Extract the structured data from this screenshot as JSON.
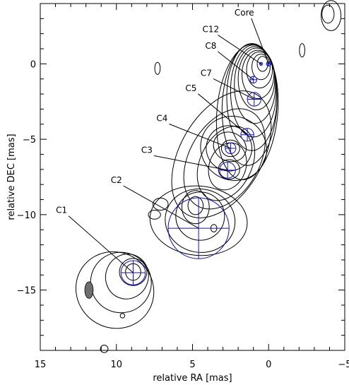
{
  "chart_data": {
    "type": "contour",
    "xlabel": "relative RA [mas]",
    "ylabel": "relative DEC [mas]",
    "xlim": [
      15,
      -5
    ],
    "ylim": [
      -19,
      4
    ],
    "x_ticks": [
      15,
      10,
      5,
      0,
      -5
    ],
    "x_tick_labels": [
      "15",
      "10",
      "5",
      "0",
      "−5"
    ],
    "y_ticks": [
      0,
      -5,
      -10,
      -15
    ],
    "y_tick_labels": [
      "0",
      "−5",
      "−10",
      "−15"
    ],
    "grid": false,
    "colors": {
      "contour": "#000000",
      "component": "#1010c8",
      "beam": "#6e6e6e"
    },
    "beam": {
      "x": 11.8,
      "y": -15.0,
      "major": 1.1,
      "minor": 0.55,
      "pa_deg": 0
    },
    "components": [
      {
        "name": "Core",
        "x": 0.0,
        "y": 0.0,
        "size": 0.3,
        "label_x": 1.6,
        "label_y": 3.2
      },
      {
        "name": "C12",
        "x": 0.5,
        "y": 0.0,
        "size": 0.2,
        "label_x": 3.8,
        "label_y": 2.1
      },
      {
        "name": "C8",
        "x": 1.0,
        "y": -1.05,
        "size": 0.45,
        "label_x": 3.8,
        "label_y": 1.0
      },
      {
        "name": "C7",
        "x": 0.95,
        "y": -2.35,
        "size": 0.9,
        "label_x": 4.1,
        "label_y": -0.8
      },
      {
        "name": "C5",
        "x": 1.4,
        "y": -4.7,
        "size": 0.85,
        "label_x": 5.1,
        "label_y": -1.8
      },
      {
        "name": "C4",
        "x": 2.5,
        "y": -5.6,
        "size": 0.7,
        "label_x": 7.0,
        "label_y": -3.8
      },
      {
        "name": "C3",
        "x": 2.7,
        "y": -7.05,
        "size": 1.05,
        "label_x": 8.0,
        "label_y": -5.9
      },
      {
        "name": "C2",
        "x": 4.6,
        "y": -10.9,
        "size": 4.0,
        "label_x": 10.0,
        "label_y": -7.9
      },
      {
        "name": "C1",
        "x": 8.9,
        "y": -13.85,
        "size": 1.6,
        "label_x": 13.6,
        "label_y": -9.9
      }
    ],
    "contours": [
      {
        "cx": 0.4,
        "cy": 0.0,
        "rx": 0.35,
        "ry": 0.5,
        "angle": 0
      },
      {
        "cx": 0.5,
        "cy": -0.2,
        "rx": 0.6,
        "ry": 0.85,
        "angle": 0
      },
      {
        "cx": 0.6,
        "cy": -0.4,
        "rx": 0.85,
        "ry": 1.2,
        "angle": 0
      },
      {
        "cx": 0.7,
        "cy": -0.7,
        "rx": 1.05,
        "ry": 1.6,
        "angle": 0
      },
      {
        "cx": 0.8,
        "cy": -1.0,
        "rx": 1.2,
        "ry": 2.05,
        "angle": 0
      },
      {
        "cx": 0.9,
        "cy": -1.4,
        "rx": 1.35,
        "ry": 2.55,
        "angle": 0
      },
      {
        "cx": 1.0,
        "cy": -1.8,
        "rx": 1.5,
        "ry": 3.05,
        "angle": 0
      },
      {
        "cx": 1.1,
        "cy": -2.2,
        "rx": 1.65,
        "ry": 3.55,
        "angle": 0
      },
      {
        "cx": 1.25,
        "cy": -2.7,
        "rx": 1.8,
        "ry": 4.05,
        "angle": 3
      },
      {
        "cx": 1.4,
        "cy": -3.2,
        "rx": 2.0,
        "ry": 4.5,
        "angle": 5
      },
      {
        "cx": 2.5,
        "cy": -5.6,
        "rx": 0.6,
        "ry": 0.55,
        "angle": 0
      },
      {
        "cx": 2.55,
        "cy": -5.5,
        "rx": 1.1,
        "ry": 0.95,
        "angle": 25
      },
      {
        "cx": 2.6,
        "cy": -5.6,
        "rx": 1.5,
        "ry": 1.5,
        "angle": 25
      },
      {
        "cx": 2.3,
        "cy": -5.6,
        "rx": 2.2,
        "ry": 2.1,
        "angle": 30
      },
      {
        "cx": 2.6,
        "cy": -7.0,
        "rx": 0.7,
        "ry": 0.65,
        "angle": 0
      },
      {
        "cx": 2.7,
        "cy": -6.8,
        "rx": 1.2,
        "ry": 1.6,
        "angle": 20
      },
      {
        "cx": 2.8,
        "cy": -6.6,
        "rx": 1.7,
        "ry": 2.6,
        "angle": 25
      },
      {
        "cx": 2.9,
        "cy": -6.3,
        "rx": 2.3,
        "ry": 3.6,
        "angle": 30
      },
      {
        "cx": 3.1,
        "cy": -6.0,
        "rx": 2.7,
        "ry": 4.6,
        "angle": 30
      },
      {
        "cx": 4.8,
        "cy": -9.4,
        "rx": 0.5,
        "ry": 0.6,
        "angle": 0
      },
      {
        "cx": 4.8,
        "cy": -9.5,
        "rx": 0.9,
        "ry": 1.1,
        "angle": 0
      },
      {
        "cx": 4.5,
        "cy": -10.1,
        "rx": 1.6,
        "ry": 1.6,
        "angle": 0
      },
      {
        "cx": 4.5,
        "cy": -10.4,
        "rx": 2.3,
        "ry": 2.1,
        "angle": 10
      },
      {
        "cx": 4.6,
        "cy": -10.4,
        "rx": 3.2,
        "ry": 2.3,
        "angle": 5
      },
      {
        "cx": 3.6,
        "cy": -10.9,
        "rx": 0.2,
        "ry": 0.25,
        "angle": 0
      },
      {
        "cx": 7.1,
        "cy": -9.3,
        "rx": 0.5,
        "ry": 0.4,
        "angle": 0
      },
      {
        "cx": 7.5,
        "cy": -10.0,
        "rx": 0.4,
        "ry": 0.3,
        "angle": 0
      },
      {
        "cx": 8.9,
        "cy": -13.8,
        "rx": 0.5,
        "ry": 0.55,
        "angle": 0
      },
      {
        "cx": 8.9,
        "cy": -13.8,
        "rx": 0.9,
        "ry": 0.9,
        "angle": 10
      },
      {
        "cx": 9.3,
        "cy": -14.1,
        "rx": 1.4,
        "ry": 1.5,
        "angle": 20
      },
      {
        "cx": 9.7,
        "cy": -14.5,
        "rx": 2.0,
        "ry": 2.0,
        "angle": 30
      },
      {
        "cx": 10.1,
        "cy": -15.0,
        "rx": 2.6,
        "ry": 2.5,
        "angle": 35
      },
      {
        "cx": 9.6,
        "cy": -16.7,
        "rx": 0.15,
        "ry": 0.15,
        "angle": 0
      },
      {
        "cx": 10.8,
        "cy": -18.9,
        "rx": 0.25,
        "ry": 0.25,
        "angle": 0
      },
      {
        "cx": 7.3,
        "cy": -0.3,
        "rx": 0.18,
        "ry": 0.4,
        "angle": 0
      },
      {
        "cx": -2.2,
        "cy": 0.9,
        "rx": 0.18,
        "ry": 0.45,
        "angle": 0
      },
      {
        "cx": -3.9,
        "cy": 3.3,
        "rx": 0.4,
        "ry": 0.6,
        "angle": 0
      },
      {
        "cx": -4.1,
        "cy": 3.2,
        "rx": 0.65,
        "ry": 1.0,
        "angle": 0
      }
    ]
  }
}
